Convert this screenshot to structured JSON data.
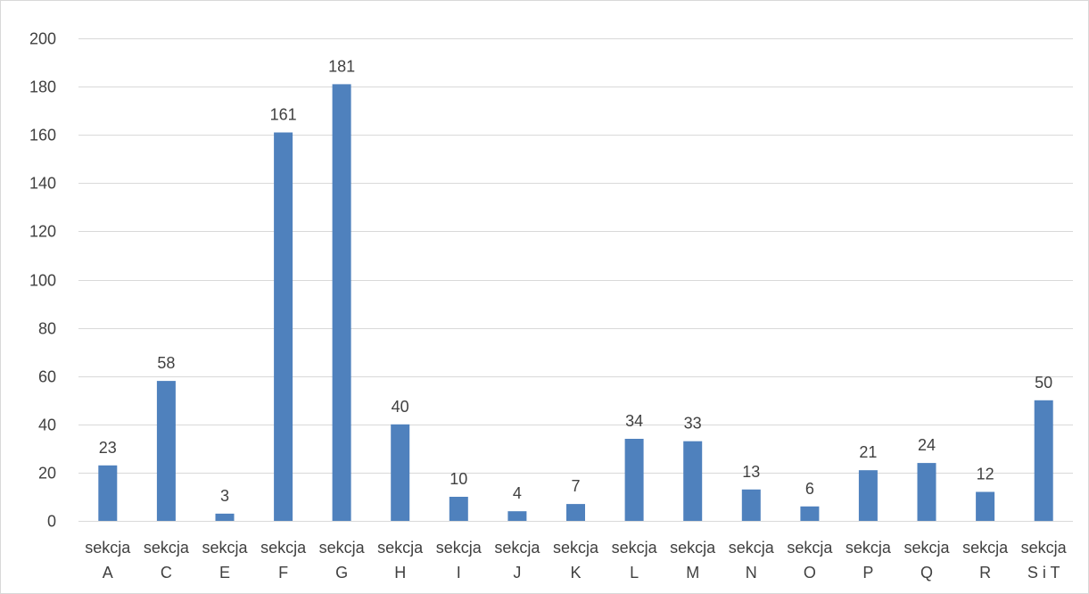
{
  "chart_data": {
    "type": "bar",
    "categories": [
      [
        "sekcja",
        "A"
      ],
      [
        "sekcja",
        "C"
      ],
      [
        "sekcja",
        "E"
      ],
      [
        "sekcja",
        "F"
      ],
      [
        "sekcja",
        "G"
      ],
      [
        "sekcja",
        "H"
      ],
      [
        "sekcja",
        "I"
      ],
      [
        "sekcja",
        "J"
      ],
      [
        "sekcja",
        "K"
      ],
      [
        "sekcja",
        "L"
      ],
      [
        "sekcja",
        "M"
      ],
      [
        "sekcja",
        "N"
      ],
      [
        "sekcja",
        "O"
      ],
      [
        "sekcja",
        "P"
      ],
      [
        "sekcja",
        "Q"
      ],
      [
        "sekcja",
        "R"
      ],
      [
        "sekcja",
        "S i T"
      ]
    ],
    "values": [
      23,
      58,
      3,
      161,
      181,
      40,
      10,
      4,
      7,
      34,
      33,
      13,
      6,
      21,
      24,
      12,
      50
    ],
    "ylim": [
      0,
      200
    ],
    "yticks": [
      0,
      20,
      40,
      60,
      80,
      100,
      120,
      140,
      160,
      180,
      200
    ],
    "grid": true,
    "data_labels": true,
    "legend": "none",
    "colors": {
      "bar": "#4f81bd",
      "grid": "#d9d9d9",
      "text": "#404040"
    },
    "title": "",
    "xlabel": "",
    "ylabel": ""
  }
}
